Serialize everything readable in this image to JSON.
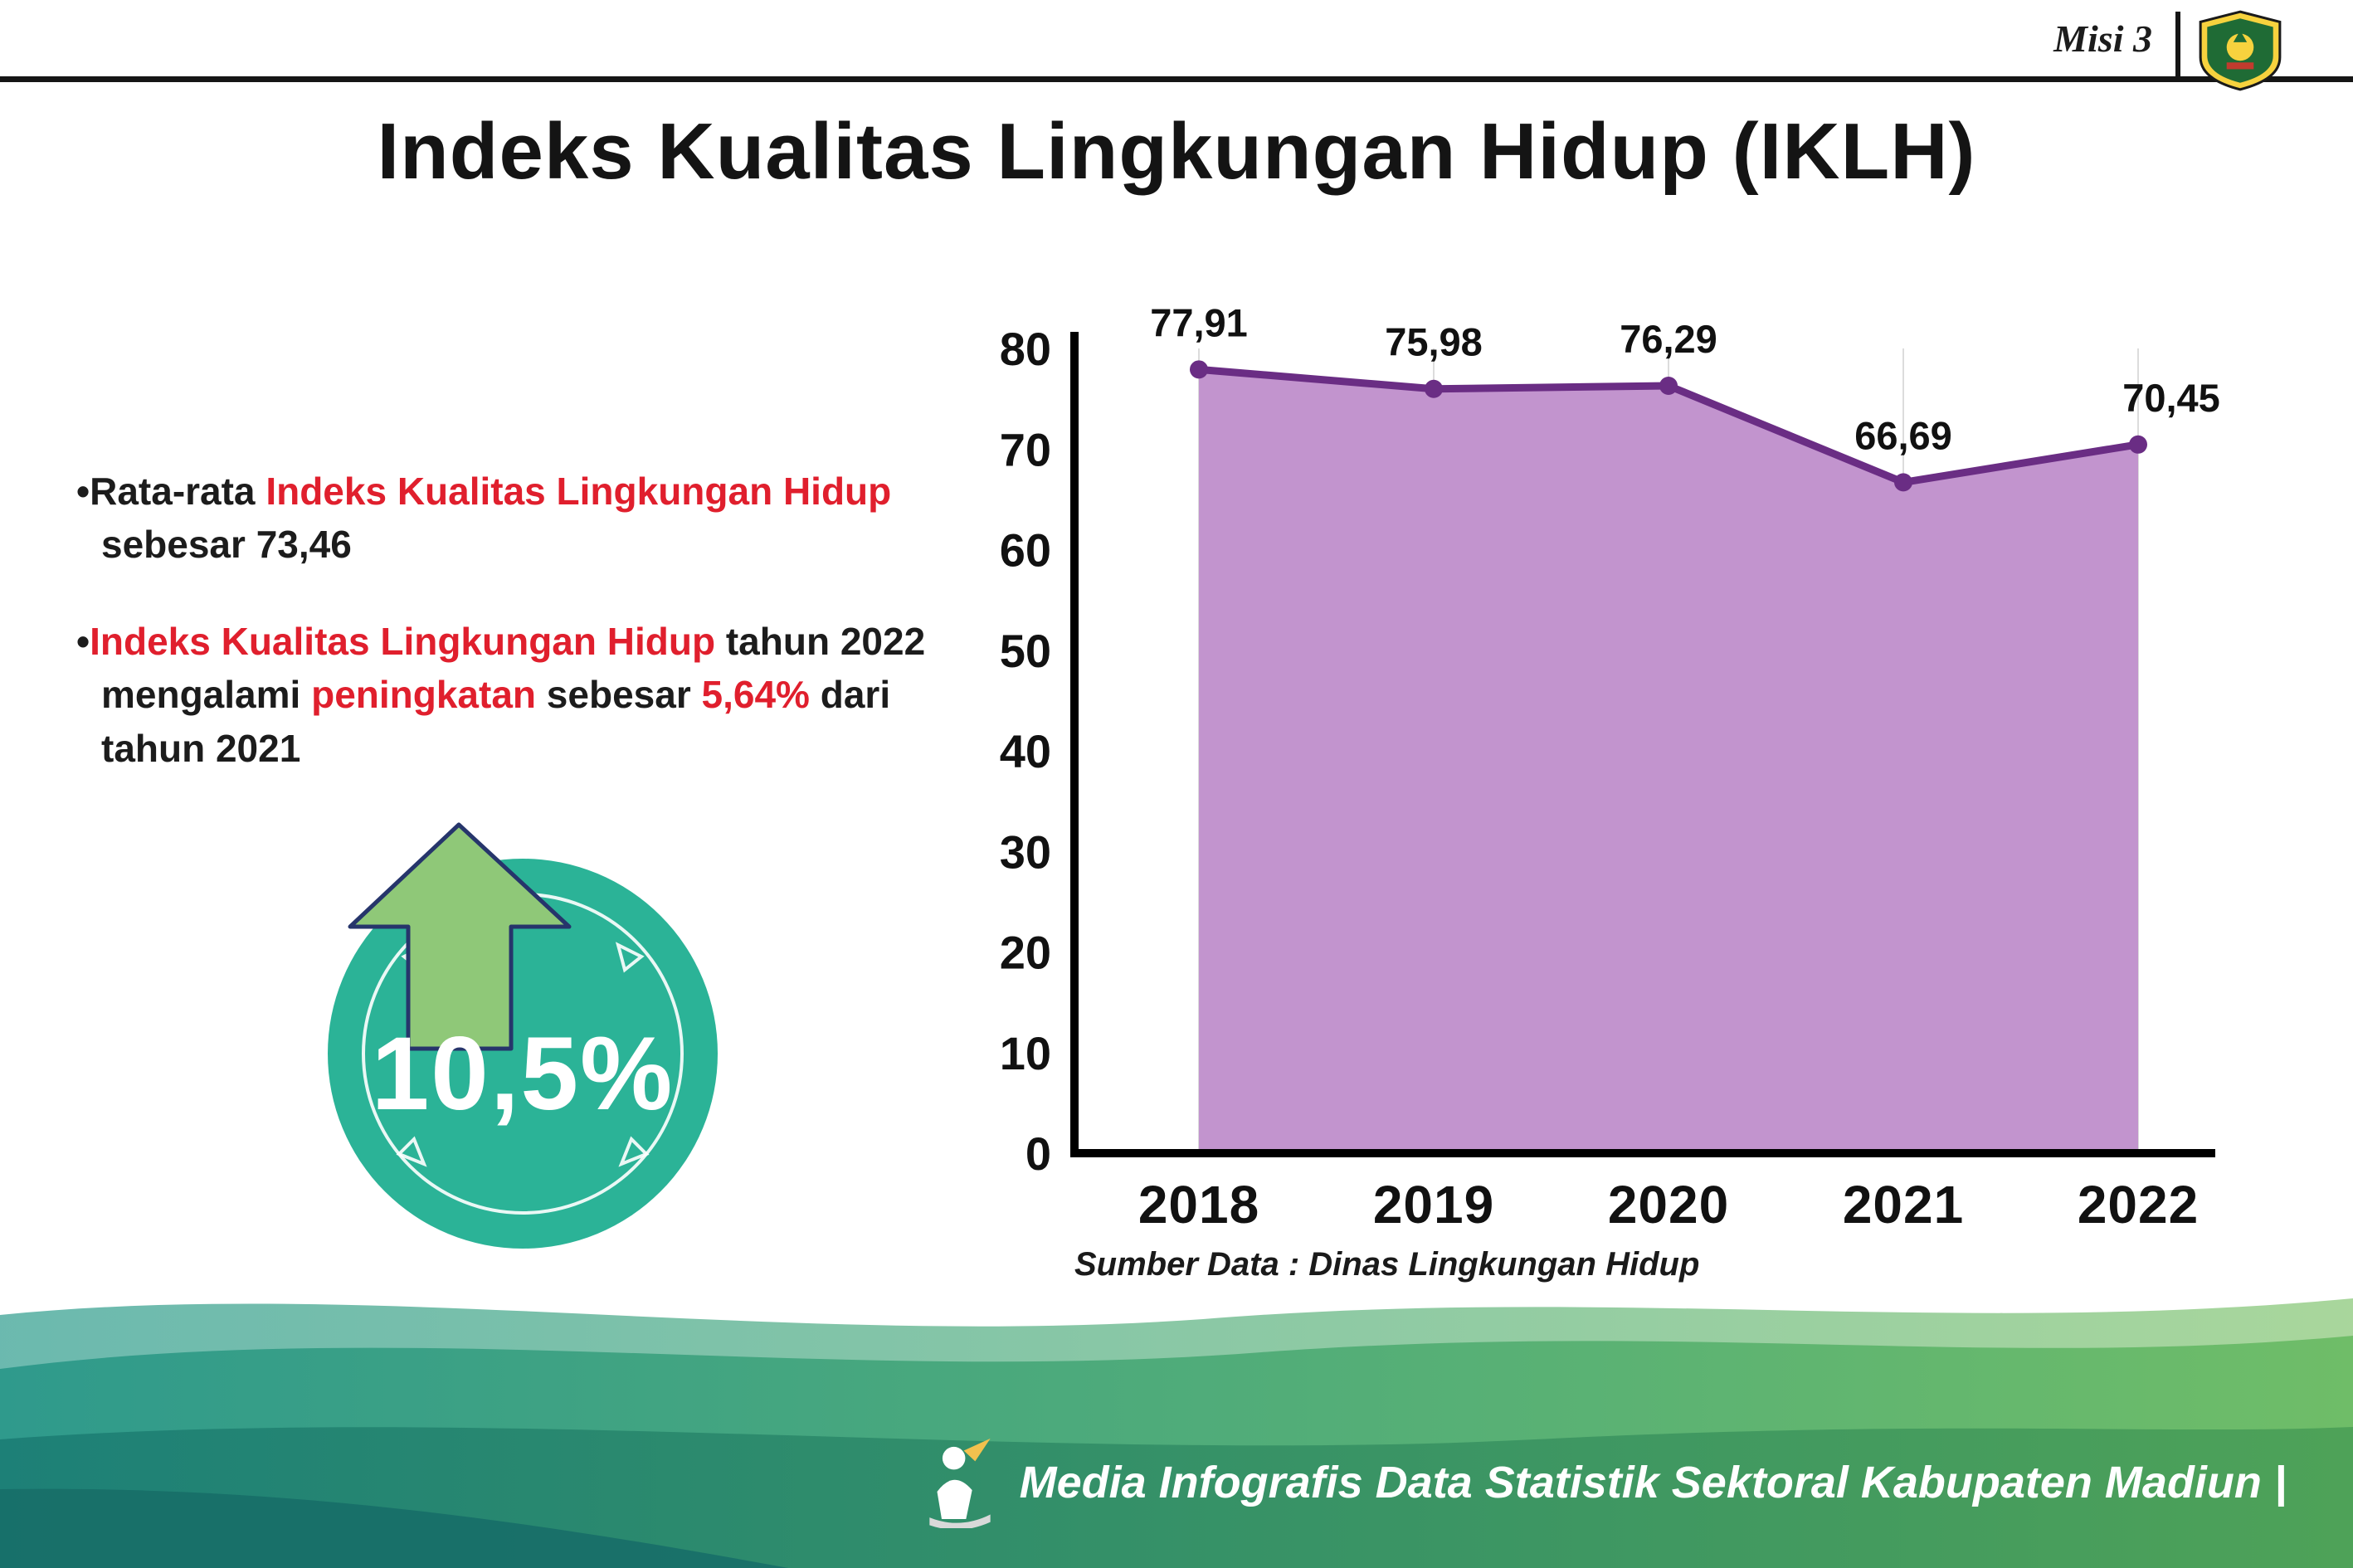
{
  "header": {
    "misi_label": "Misi 3",
    "title": "Indeks Kualitas Lingkungan Hidup (IKLH)",
    "logo": "kabupaten-madiun-crest"
  },
  "bullets": [
    {
      "marker": "•",
      "parts": [
        {
          "text": "Rata-rata ",
          "style": "normal"
        },
        {
          "text": "Indeks Kualitas Lingkungan Hidup",
          "style": "red"
        },
        {
          "text": " \nsebesar 73,46",
          "style": "normal"
        }
      ]
    },
    {
      "marker": "•",
      "parts": [
        {
          "text": "Indeks Kualitas Lingkungan Hidup",
          "style": "red"
        },
        {
          "text": " tahun 2022 \nmengalami ",
          "style": "normal"
        },
        {
          "text": "peningkatan",
          "style": "red"
        },
        {
          "text": " sebesar ",
          "style": "normal"
        },
        {
          "text": "5,64%",
          "style": "red"
        },
        {
          "text": " dari \ntahun 2021",
          "style": "normal"
        }
      ]
    }
  ],
  "badge": {
    "value": "10,5%",
    "circle_color": "#2bb397",
    "arrow_color": "#8fc878",
    "arrow_outline": "#26356b"
  },
  "chart_data": {
    "type": "area",
    "title": "",
    "categories": [
      "2018",
      "2019",
      "2020",
      "2021",
      "2022"
    ],
    "values": [
      77.91,
      75.98,
      76.29,
      66.69,
      70.45
    ],
    "value_labels": [
      "77,91",
      "75,98",
      "76,29",
      "66,69",
      "70,45"
    ],
    "ylim": [
      0,
      80
    ],
    "yticks": [
      0,
      10,
      20,
      30,
      40,
      50,
      60,
      70,
      80
    ],
    "grid": "vertical-light",
    "legend": "none",
    "line_color": "#6a2d84",
    "fill_color": "#c294ce",
    "source_note": "Sumber Data : Dinas Lingkungan Hidup"
  },
  "footer": {
    "text": "Media Infografis Data Statistik Sektoral Kabupaten Madiun |"
  },
  "colors": {
    "accent_red": "#e01f2d",
    "wave_teal": "#2f9a8c",
    "wave_green": "#6fbd68",
    "wave_dark": "#1d8077"
  }
}
